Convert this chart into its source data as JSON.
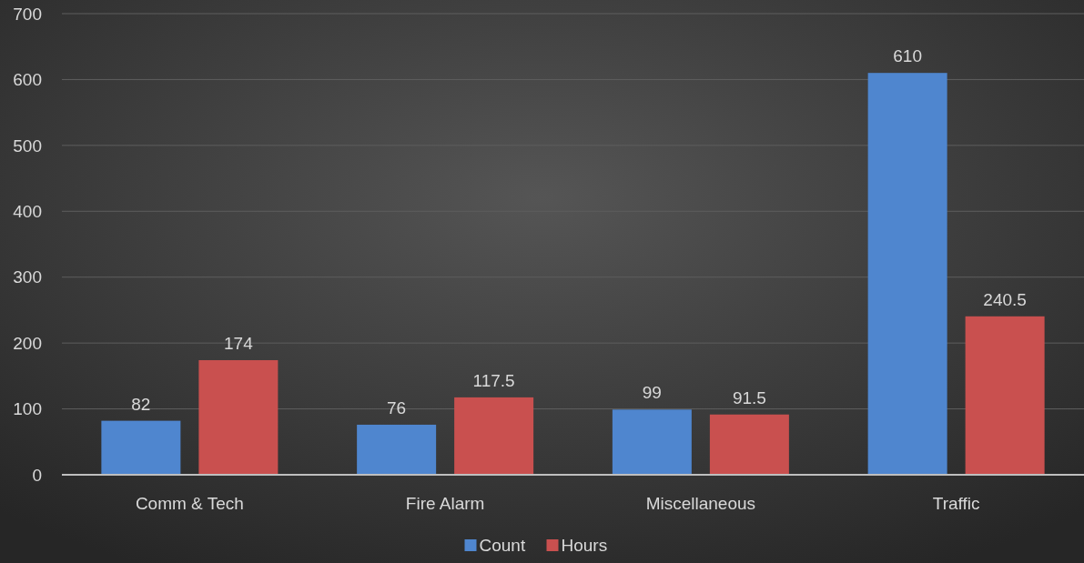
{
  "chart_data": {
    "type": "bar",
    "categories": [
      "Comm & Tech",
      "Fire Alarm",
      "Miscellaneous",
      "Traffic"
    ],
    "series": [
      {
        "name": "Count",
        "color": "#4f86cf",
        "values": [
          82,
          76,
          99,
          610
        ]
      },
      {
        "name": "Hours",
        "color": "#c9504f",
        "values": [
          174,
          117.5,
          91.5,
          240.5
        ]
      }
    ],
    "ylim": [
      0,
      700
    ],
    "yticks": [
      0,
      100,
      200,
      300,
      400,
      500,
      600,
      700
    ],
    "grid": "y",
    "legend": "bottom",
    "data_labels": true
  }
}
